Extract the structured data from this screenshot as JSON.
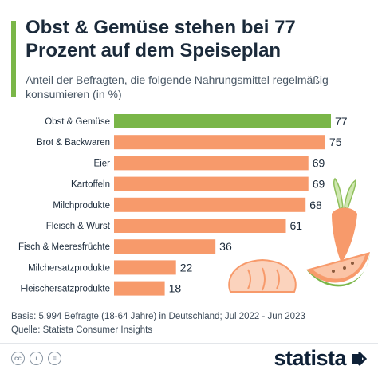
{
  "header": {
    "title": "Obst & Gemüse stehen bei 77 Prozent auf dem Speiseplan",
    "subtitle": "Anteil der Befragten, die folgende Nahrungsmittel regelmäßig konsumieren (in %)"
  },
  "chart_data": {
    "type": "bar",
    "orientation": "horizontal",
    "title": "Obst & Gemüse stehen bei 77 Prozent auf dem Speiseplan",
    "subtitle": "Anteil der Befragten, die folgende Nahrungsmittel regelmäßig konsumieren (in %)",
    "categories": [
      "Obst & Gemüse",
      "Brot & Backwaren",
      "Eier",
      "Kartoffeln",
      "Milchprodukte",
      "Fleisch & Wurst",
      "Fisch & Meeresfrüchte",
      "Milchersatzprodukte",
      "Fleischersatzprodukte"
    ],
    "values": [
      77,
      75,
      69,
      69,
      68,
      61,
      36,
      22,
      18
    ],
    "highlight_index": 0,
    "colors": {
      "highlight": "#7ab648",
      "default": "#f79a6b"
    },
    "xlim": [
      0,
      77
    ],
    "grid": false,
    "xlabel": "",
    "ylabel": ""
  },
  "footer": {
    "basis": "Basis: 5.994 Befragte (18-64 Jahre) in Deutschland; Jul 2022 - Jun 2023",
    "source": "Quelle: Statista Consumer Insights",
    "license_icons": [
      "cc-icon",
      "person-icon",
      "equals-icon"
    ],
    "logo": "statista"
  },
  "theme": {
    "accent": "#7ab648",
    "bar_color": "#f79a6b",
    "text_dark": "#1b2a3a"
  },
  "decorations": [
    "carrot-illustration",
    "bread-illustration",
    "melon-illustration"
  ]
}
